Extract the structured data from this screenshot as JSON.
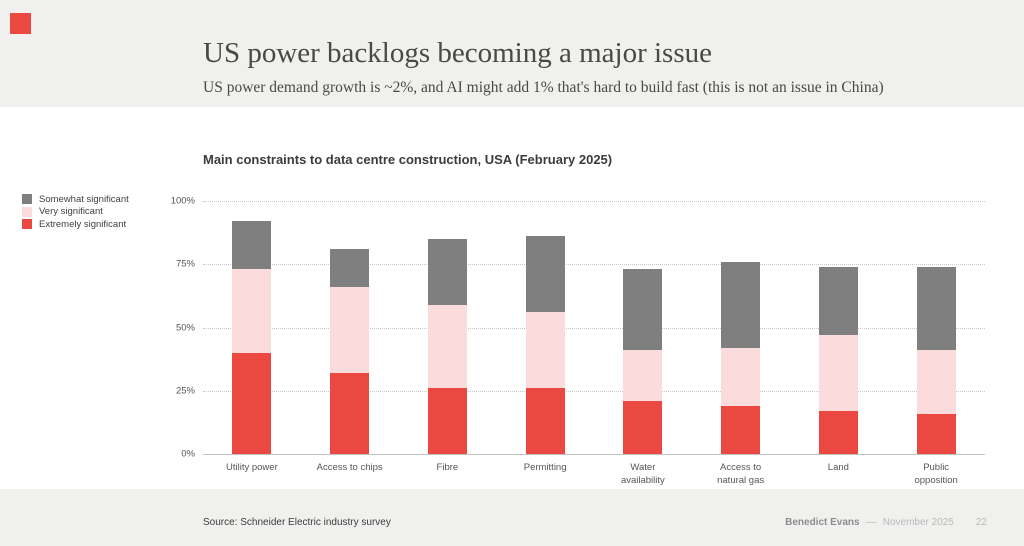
{
  "brand": {
    "logo_color": "#ea4841"
  },
  "header": {
    "title": "US power backlogs becoming a major issue",
    "subtitle": "US power demand growth is ~2%, and AI might add 1% that's hard to build fast (this is not an issue in China)"
  },
  "legend": {
    "items": [
      {
        "label": "Somewhat significant",
        "color": "#7f7f7f"
      },
      {
        "label": "Very significant",
        "color": "#fbdbdb"
      },
      {
        "label": "Extremely significant",
        "color": "#ea4841"
      }
    ]
  },
  "chart_data": {
    "type": "bar",
    "variant": "stacked",
    "title": "Main constraints to data centre construction, USA (February 2025)",
    "categories": [
      "Utility power",
      "Access to chips",
      "Fibre",
      "Permitting",
      "Water availability",
      "Access to natural gas",
      "Land",
      "Public opposition"
    ],
    "category_lines": [
      [
        "Utility power"
      ],
      [
        "Access to chips"
      ],
      [
        "Fibre"
      ],
      [
        "Permitting"
      ],
      [
        "Water",
        "availability"
      ],
      [
        "Access to",
        "natural gas"
      ],
      [
        "Land"
      ],
      [
        "Public",
        "opposition"
      ]
    ],
    "series": [
      {
        "name": "Extremely significant",
        "color": "#ea4841",
        "values": [
          40,
          32,
          26,
          26,
          21,
          19,
          17,
          16
        ]
      },
      {
        "name": "Very significant",
        "color": "#fbdbdb",
        "values": [
          33,
          34,
          33,
          30,
          20,
          23,
          30,
          25
        ]
      },
      {
        "name": "Somewhat significant",
        "color": "#7f7f7f",
        "values": [
          19,
          15,
          26,
          30,
          32,
          34,
          27,
          33
        ]
      }
    ],
    "stacked_totals": [
      92,
      81,
      85,
      86,
      73,
      76,
      74,
      74
    ],
    "ylim": [
      0,
      100
    ],
    "y_axis": {
      "ticks": [
        {
          "value": 0,
          "label": "0%"
        },
        {
          "value": 25,
          "label": "25%"
        },
        {
          "value": 50,
          "label": "50%"
        },
        {
          "value": 75,
          "label": "75%"
        },
        {
          "value": 100,
          "label": "100%"
        }
      ]
    },
    "grid": "horizontal dotted",
    "legend_position": "left of plot, top-aligned, reverse stack order"
  },
  "footer": {
    "source": "Source: Schneider Electric industry survey",
    "author": "Benedict Evans",
    "separator": "––",
    "date": "November 2025",
    "page_number": "22"
  }
}
